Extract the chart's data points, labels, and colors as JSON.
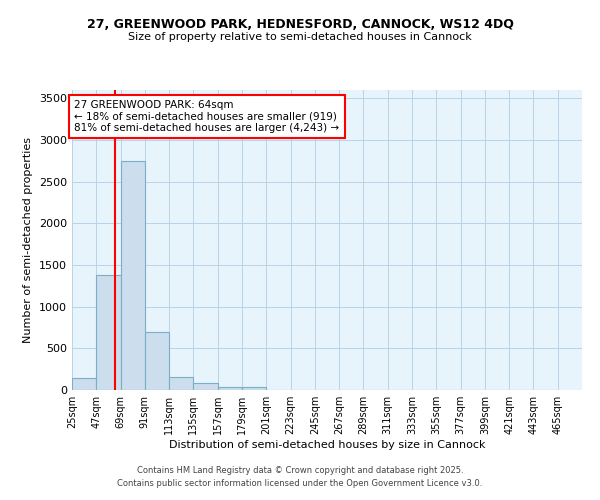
{
  "title1": "27, GREENWOOD PARK, HEDNESFORD, CANNOCK, WS12 4DQ",
  "title2": "Size of property relative to semi-detached houses in Cannock",
  "xlabel": "Distribution of semi-detached houses by size in Cannock",
  "ylabel": "Number of semi-detached properties",
  "bins": [
    "25sqm",
    "47sqm",
    "69sqm",
    "91sqm",
    "113sqm",
    "135sqm",
    "157sqm",
    "179sqm",
    "201sqm",
    "223sqm",
    "245sqm",
    "267sqm",
    "289sqm",
    "311sqm",
    "333sqm",
    "355sqm",
    "377sqm",
    "399sqm",
    "421sqm",
    "443sqm",
    "465sqm"
  ],
  "bin_edges": [
    25,
    47,
    69,
    91,
    113,
    135,
    157,
    179,
    201,
    223,
    245,
    267,
    289,
    311,
    333,
    355,
    377,
    399,
    421,
    443,
    465
  ],
  "values": [
    140,
    1380,
    2750,
    700,
    155,
    85,
    40,
    35,
    0,
    0,
    0,
    0,
    0,
    0,
    0,
    0,
    0,
    0,
    0,
    0
  ],
  "bar_color": "#ccdded",
  "bar_edge_color": "#7aafc8",
  "red_line_x": 64,
  "ylim": [
    0,
    3600
  ],
  "yticks": [
    0,
    500,
    1000,
    1500,
    2000,
    2500,
    3000,
    3500
  ],
  "annotation_title": "27 GREENWOOD PARK: 64sqm",
  "annotation_line1": "← 18% of semi-detached houses are smaller (919)",
  "annotation_line2": "81% of semi-detached houses are larger (4,243) →",
  "footer1": "Contains HM Land Registry data © Crown copyright and database right 2025.",
  "footer2": "Contains public sector information licensed under the Open Government Licence v3.0.",
  "background_color": "#e8f4fb",
  "grid_color": "#b8d4e8"
}
